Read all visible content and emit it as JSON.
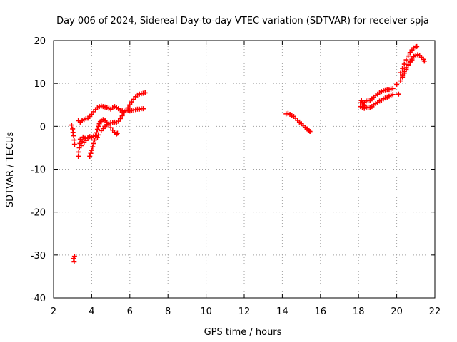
{
  "chart_data": {
    "type": "scatter",
    "title": "Day 006 of 2024, Sidereal Day-to-day VTEC variation (SDTVAR) for receiver spja",
    "xlabel": "GPS time / hours",
    "ylabel": "SDTVAR / TECUs",
    "xlim": [
      2,
      22
    ],
    "ylim": [
      -40,
      20
    ],
    "xticks": [
      2,
      4,
      6,
      8,
      10,
      12,
      14,
      16,
      18,
      20,
      22
    ],
    "yticks": [
      -40,
      -30,
      -20,
      -10,
      0,
      10,
      20
    ],
    "grid": true,
    "marker": "+",
    "colors": {
      "series": "#ff0000",
      "grid": "#a0a0a0",
      "axis": "#000000"
    },
    "series": [
      {
        "points": [
          [
            2.95,
            0.3
          ],
          [
            3.0,
            -0.6
          ],
          [
            3.02,
            -1.4
          ],
          [
            3.05,
            -2.2
          ],
          [
            3.08,
            -3.2
          ],
          [
            3.1,
            -4.2
          ],
          [
            3.05,
            -30.8
          ],
          [
            3.08,
            -31.6
          ],
          [
            3.1,
            -30.3
          ],
          [
            3.3,
            -7.0
          ],
          [
            3.32,
            -6.0
          ],
          [
            3.35,
            -5.0
          ],
          [
            3.38,
            -4.0
          ],
          [
            3.4,
            -3.0
          ],
          [
            3.45,
            -4.5
          ],
          [
            3.5,
            -3.5
          ],
          [
            3.55,
            -2.5
          ],
          [
            3.6,
            -3.8
          ],
          [
            3.65,
            -2.8
          ],
          [
            3.7,
            -3.3
          ],
          [
            3.8,
            -2.6
          ],
          [
            3.9,
            -2.4
          ],
          [
            4.0,
            -2.5
          ],
          [
            4.1,
            -2.3
          ],
          [
            4.2,
            -2.2
          ],
          [
            4.3,
            -2.6
          ],
          [
            4.35,
            -2.0
          ],
          [
            3.9,
            -7.0
          ],
          [
            3.95,
            -6.3
          ],
          [
            4.0,
            -5.6
          ],
          [
            4.05,
            -4.8
          ],
          [
            4.1,
            -4.0
          ],
          [
            4.15,
            -3.2
          ],
          [
            4.2,
            -2.3
          ],
          [
            4.25,
            -1.5
          ],
          [
            4.3,
            -0.7
          ],
          [
            4.35,
            0.0
          ],
          [
            4.4,
            0.6
          ],
          [
            4.45,
            1.1
          ],
          [
            4.5,
            1.4
          ],
          [
            4.6,
            1.6
          ],
          [
            4.7,
            1.3
          ],
          [
            4.8,
            0.9
          ],
          [
            4.9,
            0.3
          ],
          [
            5.0,
            -0.3
          ],
          [
            5.1,
            -0.9
          ],
          [
            5.2,
            -1.4
          ],
          [
            5.3,
            -1.8
          ],
          [
            5.35,
            -1.6
          ],
          [
            4.5,
            -1.0
          ],
          [
            4.6,
            -0.5
          ],
          [
            4.7,
            0.0
          ],
          [
            4.8,
            0.4
          ],
          [
            4.9,
            0.6
          ],
          [
            5.0,
            0.8
          ],
          [
            5.1,
            0.9
          ],
          [
            5.2,
            1.0
          ],
          [
            5.3,
            0.8
          ],
          [
            5.4,
            1.2
          ],
          [
            5.5,
            1.8
          ],
          [
            5.6,
            2.5
          ],
          [
            5.65,
            3.2
          ],
          [
            3.3,
            1.3
          ],
          [
            3.4,
            1.0
          ],
          [
            3.5,
            1.3
          ],
          [
            3.6,
            1.6
          ],
          [
            3.7,
            1.8
          ],
          [
            3.8,
            1.9
          ],
          [
            3.9,
            2.3
          ],
          [
            4.0,
            2.8
          ],
          [
            4.1,
            3.4
          ],
          [
            4.2,
            3.9
          ],
          [
            4.3,
            4.3
          ],
          [
            4.4,
            4.6
          ],
          [
            4.5,
            4.7
          ],
          [
            4.6,
            4.6
          ],
          [
            4.7,
            4.5
          ],
          [
            4.8,
            4.4
          ],
          [
            4.9,
            4.2
          ],
          [
            5.0,
            4.0
          ],
          [
            5.1,
            4.3
          ],
          [
            5.2,
            4.6
          ],
          [
            5.3,
            4.4
          ],
          [
            5.4,
            4.1
          ],
          [
            5.5,
            3.8
          ],
          [
            5.6,
            3.6
          ],
          [
            5.7,
            3.5
          ],
          [
            5.8,
            3.6
          ],
          [
            5.9,
            3.8
          ],
          [
            6.0,
            3.6
          ],
          [
            5.7,
            3.2
          ],
          [
            5.8,
            3.7
          ],
          [
            5.9,
            4.3
          ],
          [
            6.0,
            5.0
          ],
          [
            6.1,
            5.7
          ],
          [
            6.2,
            6.3
          ],
          [
            6.3,
            6.9
          ],
          [
            6.4,
            7.3
          ],
          [
            6.5,
            7.5
          ],
          [
            6.6,
            7.6
          ],
          [
            6.7,
            7.7
          ],
          [
            6.8,
            7.8
          ],
          [
            6.0,
            3.6
          ],
          [
            6.1,
            3.7
          ],
          [
            6.2,
            3.8
          ],
          [
            6.3,
            3.9
          ],
          [
            6.4,
            4.0
          ],
          [
            6.5,
            4.0
          ],
          [
            6.6,
            4.1
          ],
          [
            6.7,
            4.1
          ]
        ]
      },
      {
        "points": [
          [
            14.2,
            2.9
          ],
          [
            14.3,
            3.0
          ],
          [
            14.4,
            2.8
          ],
          [
            14.5,
            2.6
          ],
          [
            14.6,
            2.3
          ],
          [
            14.7,
            1.9
          ],
          [
            14.8,
            1.4
          ],
          [
            14.9,
            1.0
          ],
          [
            15.0,
            0.6
          ],
          [
            15.1,
            0.2
          ],
          [
            15.2,
            -0.2
          ],
          [
            15.3,
            -0.6
          ],
          [
            15.4,
            -1.0
          ],
          [
            15.45,
            -1.2
          ]
        ]
      },
      {
        "points": [
          [
            18.1,
            5.5
          ],
          [
            18.15,
            6.0
          ],
          [
            18.2,
            5.4
          ],
          [
            18.25,
            5.0
          ],
          [
            18.3,
            4.8
          ],
          [
            18.4,
            4.5
          ],
          [
            18.5,
            4.4
          ],
          [
            18.6,
            4.4
          ],
          [
            18.7,
            4.6
          ],
          [
            18.1,
            4.6
          ],
          [
            18.2,
            4.4
          ],
          [
            18.3,
            4.2
          ],
          [
            18.4,
            4.3
          ],
          [
            18.3,
            5.6
          ],
          [
            18.4,
            5.9
          ],
          [
            18.5,
            6.0
          ],
          [
            18.8,
            5.0
          ],
          [
            18.9,
            5.3
          ],
          [
            19.0,
            5.6
          ],
          [
            19.1,
            5.9
          ],
          [
            19.2,
            6.1
          ],
          [
            19.3,
            6.4
          ],
          [
            19.4,
            6.6
          ],
          [
            19.5,
            6.8
          ],
          [
            19.6,
            7.0
          ],
          [
            19.7,
            7.2
          ],
          [
            19.8,
            7.4
          ],
          [
            18.6,
            6.0
          ],
          [
            18.7,
            6.4
          ],
          [
            18.8,
            6.8
          ],
          [
            18.9,
            7.2
          ],
          [
            19.0,
            7.5
          ],
          [
            19.1,
            7.8
          ],
          [
            19.2,
            8.1
          ],
          [
            19.3,
            8.3
          ],
          [
            19.4,
            8.5
          ],
          [
            19.5,
            8.6
          ],
          [
            19.6,
            8.6
          ],
          [
            19.7,
            8.7
          ],
          [
            19.8,
            8.8
          ],
          [
            20.0,
            9.8
          ],
          [
            20.1,
            7.5
          ],
          [
            20.2,
            10.6
          ],
          [
            20.3,
            11.5
          ],
          [
            20.4,
            12.4
          ],
          [
            20.5,
            13.3
          ],
          [
            20.6,
            14.2
          ],
          [
            20.7,
            15.1
          ],
          [
            20.8,
            15.9
          ],
          [
            20.9,
            16.3
          ],
          [
            21.0,
            16.6
          ],
          [
            21.1,
            16.7
          ],
          [
            21.2,
            16.5
          ],
          [
            21.3,
            16.1
          ],
          [
            21.4,
            15.6
          ],
          [
            21.45,
            15.2
          ],
          [
            20.2,
            12.5
          ],
          [
            20.3,
            13.5
          ],
          [
            20.4,
            14.5
          ],
          [
            20.5,
            15.5
          ],
          [
            20.6,
            16.4
          ],
          [
            20.7,
            17.2
          ],
          [
            20.8,
            17.8
          ],
          [
            20.9,
            18.3
          ],
          [
            21.0,
            18.5
          ],
          [
            21.05,
            18.6
          ],
          [
            20.3,
            12.0
          ],
          [
            20.4,
            12.8
          ],
          [
            20.5,
            13.7
          ],
          [
            20.6,
            14.4
          ],
          [
            20.7,
            15.0
          ],
          [
            20.8,
            15.5
          ]
        ]
      }
    ]
  }
}
